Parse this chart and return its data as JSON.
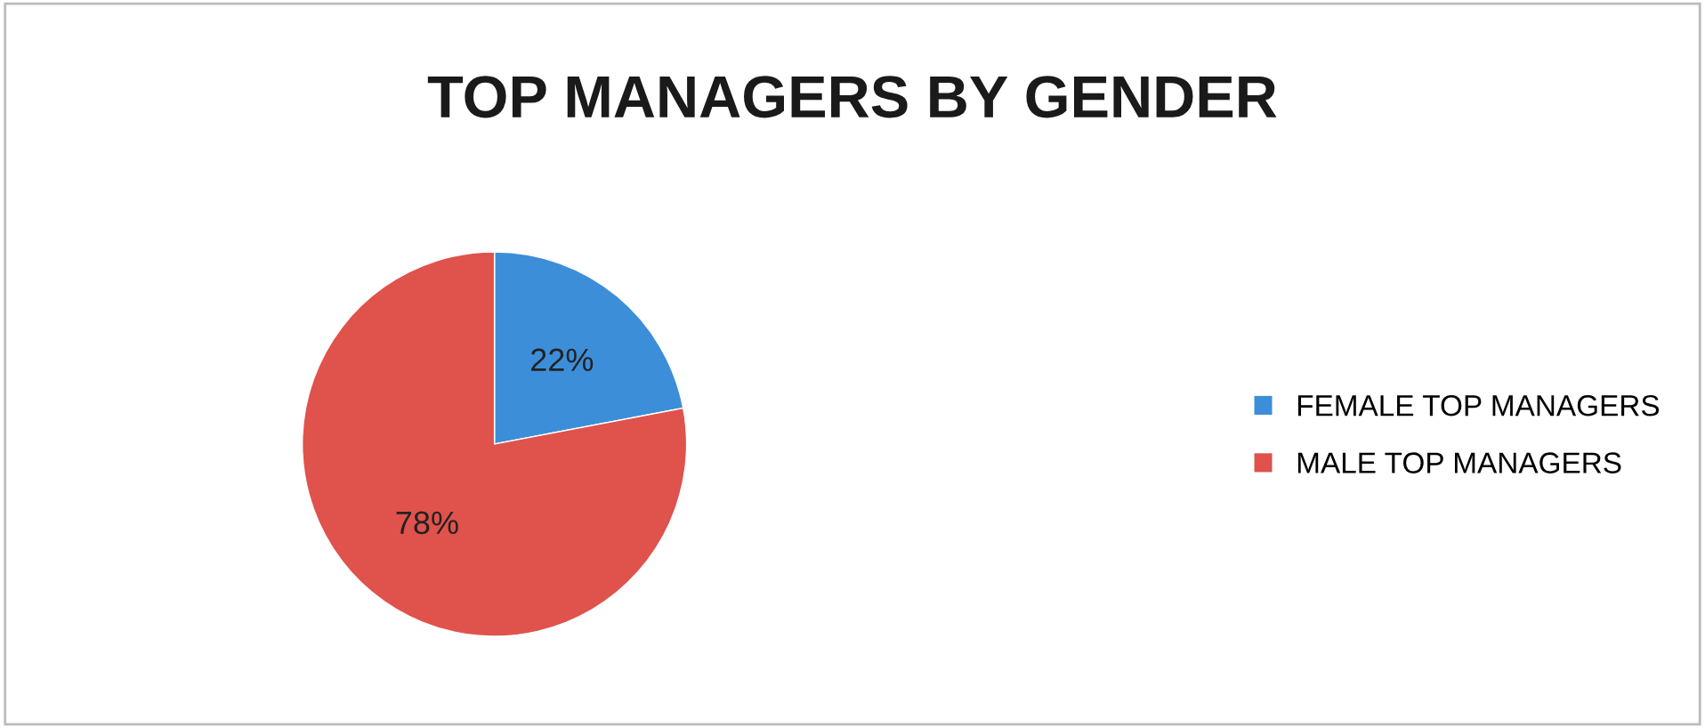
{
  "chart_data": {
    "type": "pie",
    "title": "TOP MANAGERS BY GENDER",
    "categories": [
      "FEMALE TOP MANAGERS",
      "MALE TOP MANAGERS"
    ],
    "values": [
      22,
      78
    ],
    "colors": [
      "#3d8ed8",
      "#e0524c"
    ],
    "value_labels": [
      "22%",
      "78%"
    ],
    "legend": "right"
  }
}
